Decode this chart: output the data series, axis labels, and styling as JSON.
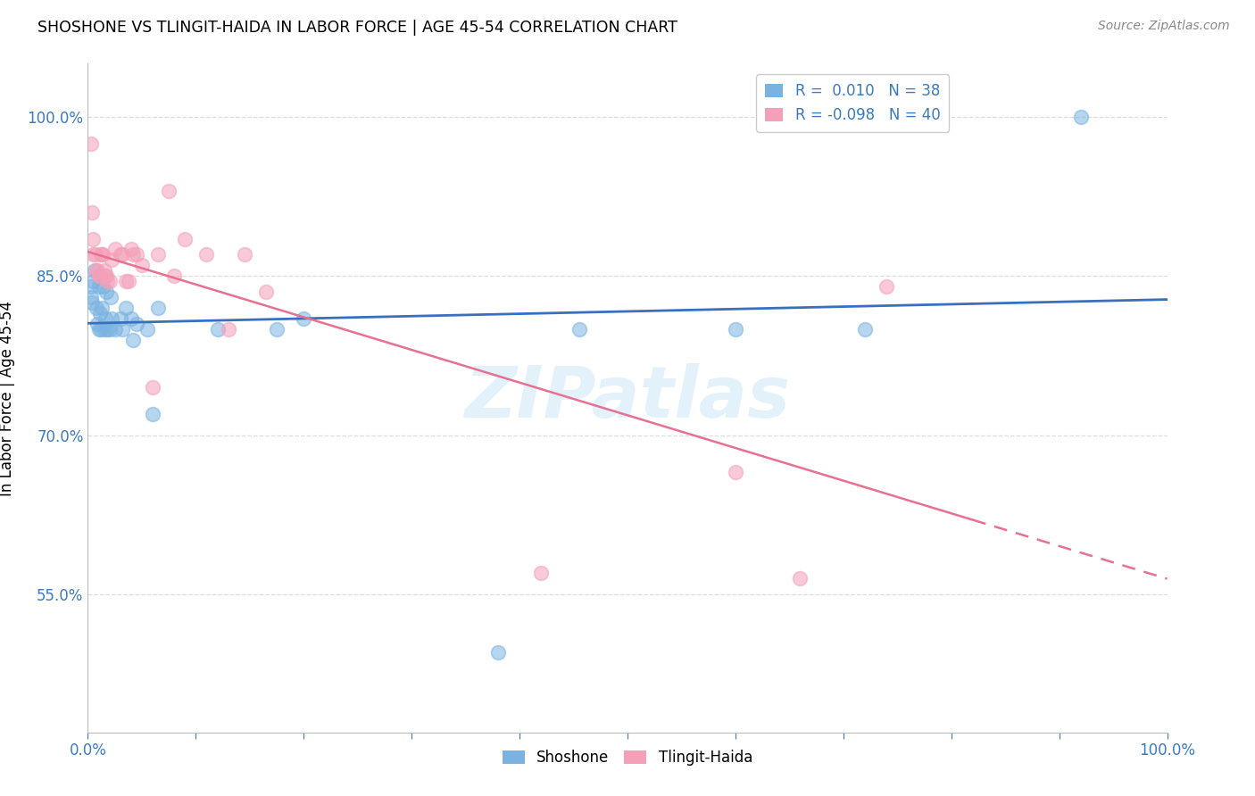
{
  "title": "SHOSHONE VS TLINGIT-HAIDA IN LABOR FORCE | AGE 45-54 CORRELATION CHART",
  "source": "Source: ZipAtlas.com",
  "xlabel": "",
  "ylabel": "In Labor Force | Age 45-54",
  "xlim": [
    0.0,
    1.0
  ],
  "ylim": [
    0.42,
    1.05
  ],
  "xticks": [
    0.0,
    0.1,
    0.2,
    0.3,
    0.4,
    0.5,
    0.6,
    0.7,
    0.8,
    0.9,
    1.0
  ],
  "xticklabels": [
    "0.0%",
    "",
    "",
    "",
    "",
    "",
    "",
    "",
    "",
    "",
    "100.0%"
  ],
  "ytick_positions": [
    0.55,
    0.7,
    0.85,
    1.0
  ],
  "ytick_labels": [
    "55.0%",
    "70.0%",
    "85.0%",
    "100.0%"
  ],
  "shoshone_x": [
    0.003,
    0.003,
    0.004,
    0.005,
    0.006,
    0.008,
    0.009,
    0.01,
    0.01,
    0.011,
    0.012,
    0.013,
    0.014,
    0.015,
    0.016,
    0.017,
    0.018,
    0.02,
    0.021,
    0.022,
    0.025,
    0.03,
    0.032,
    0.035,
    0.04,
    0.042,
    0.045,
    0.055,
    0.06,
    0.065,
    0.12,
    0.175,
    0.2,
    0.38,
    0.455,
    0.6,
    0.72,
    0.92
  ],
  "shoshone_y": [
    0.83,
    0.84,
    0.825,
    0.845,
    0.855,
    0.82,
    0.805,
    0.8,
    0.84,
    0.815,
    0.8,
    0.82,
    0.84,
    0.8,
    0.81,
    0.835,
    0.8,
    0.8,
    0.83,
    0.81,
    0.8,
    0.81,
    0.8,
    0.82,
    0.81,
    0.79,
    0.805,
    0.8,
    0.72,
    0.82,
    0.8,
    0.8,
    0.81,
    0.495,
    0.8,
    0.8,
    0.8,
    1.0
  ],
  "tlingit_x": [
    0.003,
    0.004,
    0.005,
    0.005,
    0.007,
    0.008,
    0.009,
    0.01,
    0.011,
    0.012,
    0.013,
    0.014,
    0.015,
    0.016,
    0.017,
    0.018,
    0.02,
    0.022,
    0.025,
    0.03,
    0.032,
    0.035,
    0.038,
    0.04,
    0.042,
    0.045,
    0.05,
    0.06,
    0.065,
    0.075,
    0.08,
    0.09,
    0.11,
    0.13,
    0.145,
    0.165,
    0.42,
    0.6,
    0.66,
    0.74
  ],
  "tlingit_y": [
    0.975,
    0.91,
    0.885,
    0.87,
    0.87,
    0.855,
    0.855,
    0.85,
    0.85,
    0.87,
    0.87,
    0.87,
    0.855,
    0.85,
    0.85,
    0.845,
    0.845,
    0.865,
    0.875,
    0.87,
    0.87,
    0.845,
    0.845,
    0.875,
    0.87,
    0.87,
    0.86,
    0.745,
    0.87,
    0.93,
    0.85,
    0.885,
    0.87,
    0.8,
    0.87,
    0.835,
    0.57,
    0.665,
    0.565,
    0.84
  ],
  "shoshone_color": "#7ab3e0",
  "tlingit_color": "#f4a0b8",
  "shoshone_line_color": "#3a6fbf",
  "tlingit_line_color": "#e87090",
  "R_shoshone": 0.01,
  "N_shoshone": 38,
  "R_tlingit": -0.098,
  "N_tlingit": 40,
  "watermark": "ZIPatlas",
  "background_color": "#ffffff",
  "grid_color": "#dddddd"
}
